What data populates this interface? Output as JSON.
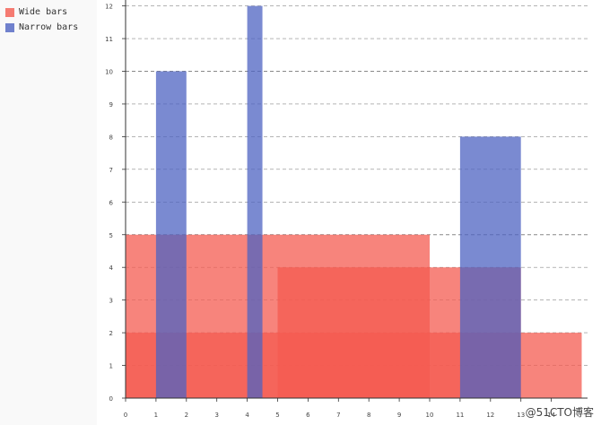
{
  "legend": {
    "items": [
      {
        "label": "Wide bars",
        "color": "#f45b50"
      },
      {
        "label": "Narrow bars",
        "color": "#4d63c2"
      }
    ]
  },
  "watermark": "@51CTO博客",
  "colors": {
    "wide": "#f45b50",
    "narrow": "#4d63c2",
    "grid": "#888888",
    "axis": "#333333",
    "tick_text": "#444444"
  },
  "chart_data": {
    "type": "bar",
    "title": "",
    "xlabel": "",
    "ylabel": "",
    "xlim": [
      0,
      15
    ],
    "ylim": [
      0,
      12
    ],
    "x_tick_labels": [
      "0",
      "1",
      "2",
      "3",
      "4",
      "5",
      "6",
      "7",
      "8",
      "9",
      "10",
      "11",
      "12",
      "13",
      "14"
    ],
    "y_tick_labels": [
      "0",
      "1",
      "2",
      "3",
      "4",
      "5",
      "6",
      "7",
      "8",
      "9",
      "10",
      "11",
      "12"
    ],
    "grid": "horizontal dashed",
    "legend_position": "top-left",
    "series": [
      {
        "name": "Wide bars",
        "bars": [
          {
            "x_start": 0,
            "x_end": 10,
            "value": 5
          },
          {
            "x_start": 5,
            "x_end": 10,
            "value": 4
          },
          {
            "x_start": 10,
            "x_end": 13,
            "value": 4
          },
          {
            "x_start": 0,
            "x_end": 15,
            "value": 2
          }
        ]
      },
      {
        "name": "Narrow bars",
        "bars": [
          {
            "x_start": 1,
            "x_end": 2,
            "value": 10
          },
          {
            "x_start": 4,
            "x_end": 4.5,
            "value": 12
          },
          {
            "x_start": 11,
            "x_end": 13,
            "value": 8
          }
        ]
      }
    ]
  }
}
